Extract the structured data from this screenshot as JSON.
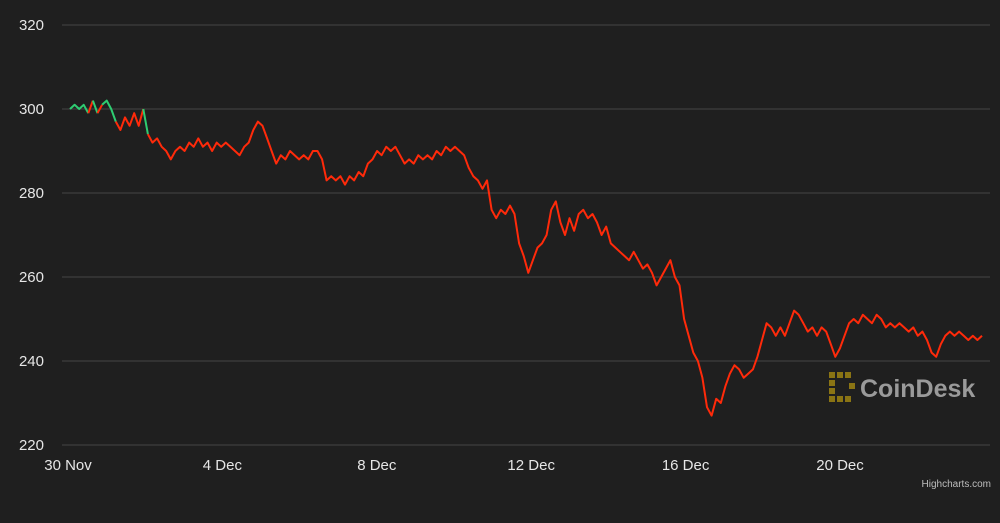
{
  "chart_data": {
    "type": "line",
    "title": "",
    "xlabel": "",
    "ylabel": "",
    "ylim": [
      220,
      320
    ],
    "y_ticks": [
      "220",
      "240",
      "260",
      "280",
      "300",
      "320"
    ],
    "x_ticks": [
      "30 Nov",
      "4 Dec",
      "8 Dec",
      "12 Dec",
      "16 Dec",
      "20 Dec"
    ],
    "grid": true,
    "legend": "none",
    "colors": {
      "background": "#1f1f1f",
      "grid": "#444444",
      "up": "#2ecc71",
      "down": "#ff2a0a"
    },
    "series": [
      {
        "x_start": "2021-11-30",
        "x_end": "2021-12-24",
        "points": [
          [
            "2021-11-30",
            300
          ],
          [
            "2021-11-30",
            301
          ],
          [
            "2021-11-30",
            300
          ],
          [
            "2021-11-30",
            301
          ],
          [
            "2021-11-30",
            299
          ],
          [
            "2021-11-30",
            302
          ],
          [
            "2021-11-30",
            299
          ],
          [
            "2021-12-01",
            301
          ],
          [
            "2021-12-01",
            302
          ],
          [
            "2021-12-01",
            300
          ],
          [
            "2021-12-01",
            297
          ],
          [
            "2021-12-01",
            295
          ],
          [
            "2021-12-01",
            298
          ],
          [
            "2021-12-01",
            296
          ],
          [
            "2021-12-01",
            299
          ],
          [
            "2021-12-01",
            296
          ],
          [
            "2021-12-01",
            300
          ],
          [
            "2021-12-01",
            294
          ],
          [
            "2021-12-01",
            292
          ],
          [
            "2021-12-02",
            293
          ],
          [
            "2021-12-02",
            291
          ],
          [
            "2021-12-02",
            290
          ],
          [
            "2021-12-02",
            288
          ],
          [
            "2021-12-02",
            290
          ],
          [
            "2021-12-02",
            291
          ],
          [
            "2021-12-02",
            290
          ],
          [
            "2021-12-03",
            292
          ],
          [
            "2021-12-03",
            291
          ],
          [
            "2021-12-03",
            293
          ],
          [
            "2021-12-03",
            291
          ],
          [
            "2021-12-03",
            292
          ],
          [
            "2021-12-03",
            290
          ],
          [
            "2021-12-03",
            292
          ],
          [
            "2021-12-04",
            291
          ],
          [
            "2021-12-04",
            292
          ],
          [
            "2021-12-04",
            291
          ],
          [
            "2021-12-04",
            290
          ],
          [
            "2021-12-04",
            289
          ],
          [
            "2021-12-04",
            291
          ],
          [
            "2021-12-05",
            292
          ],
          [
            "2021-12-05",
            295
          ],
          [
            "2021-12-05",
            297
          ],
          [
            "2021-12-05",
            296
          ],
          [
            "2021-12-05",
            293
          ],
          [
            "2021-12-05",
            290
          ],
          [
            "2021-12-05",
            287
          ],
          [
            "2021-12-05",
            289
          ],
          [
            "2021-12-06",
            288
          ],
          [
            "2021-12-06",
            290
          ],
          [
            "2021-12-06",
            289
          ],
          [
            "2021-12-06",
            288
          ],
          [
            "2021-12-06",
            289
          ],
          [
            "2021-12-07",
            288
          ],
          [
            "2021-12-07",
            290
          ],
          [
            "2021-12-07",
            290
          ],
          [
            "2021-12-07",
            288
          ],
          [
            "2021-12-07",
            283
          ],
          [
            "2021-12-07",
            284
          ],
          [
            "2021-12-07",
            283
          ],
          [
            "2021-12-08",
            284
          ],
          [
            "2021-12-08",
            282
          ],
          [
            "2021-12-08",
            284
          ],
          [
            "2021-12-08",
            283
          ],
          [
            "2021-12-08",
            285
          ],
          [
            "2021-12-08",
            284
          ],
          [
            "2021-12-08",
            287
          ],
          [
            "2021-12-09",
            288
          ],
          [
            "2021-12-09",
            290
          ],
          [
            "2021-12-09",
            289
          ],
          [
            "2021-12-09",
            291
          ],
          [
            "2021-12-09",
            290
          ],
          [
            "2021-12-09",
            291
          ],
          [
            "2021-12-09",
            289
          ],
          [
            "2021-12-10",
            287
          ],
          [
            "2021-12-10",
            288
          ],
          [
            "2021-12-10",
            287
          ],
          [
            "2021-12-10",
            289
          ],
          [
            "2021-12-10",
            288
          ],
          [
            "2021-12-10",
            289
          ],
          [
            "2021-12-11",
            288
          ],
          [
            "2021-12-11",
            290
          ],
          [
            "2021-12-11",
            289
          ],
          [
            "2021-12-11",
            291
          ],
          [
            "2021-12-11",
            290
          ],
          [
            "2021-12-11",
            291
          ],
          [
            "2021-12-11",
            290
          ],
          [
            "2021-12-11",
            289
          ],
          [
            "2021-12-12",
            286
          ],
          [
            "2021-12-12",
            284
          ],
          [
            "2021-12-12",
            283
          ],
          [
            "2021-12-12",
            281
          ],
          [
            "2021-12-12",
            283
          ],
          [
            "2021-12-12",
            276
          ],
          [
            "2021-12-12",
            274
          ],
          [
            "2021-12-12",
            276
          ],
          [
            "2021-12-13",
            275
          ],
          [
            "2021-12-13",
            277
          ],
          [
            "2021-12-13",
            275
          ],
          [
            "2021-12-13",
            268
          ],
          [
            "2021-12-13",
            265
          ],
          [
            "2021-12-13",
            261
          ],
          [
            "2021-12-13",
            264
          ],
          [
            "2021-12-13",
            267
          ],
          [
            "2021-12-13",
            268
          ],
          [
            "2021-12-13",
            270
          ],
          [
            "2021-12-13",
            276
          ],
          [
            "2021-12-13",
            278
          ],
          [
            "2021-12-13",
            273
          ],
          [
            "2021-12-13",
            270
          ],
          [
            "2021-12-14",
            274
          ],
          [
            "2021-12-14",
            271
          ],
          [
            "2021-12-14",
            275
          ],
          [
            "2021-12-14",
            276
          ],
          [
            "2021-12-14",
            274
          ],
          [
            "2021-12-14",
            275
          ],
          [
            "2021-12-14",
            273
          ],
          [
            "2021-12-14",
            270
          ],
          [
            "2021-12-14",
            272
          ],
          [
            "2021-12-14",
            268
          ],
          [
            "2021-12-15",
            267
          ],
          [
            "2021-12-15",
            266
          ],
          [
            "2021-12-15",
            265
          ],
          [
            "2021-12-15",
            264
          ],
          [
            "2021-12-15",
            266
          ],
          [
            "2021-12-15",
            264
          ],
          [
            "2021-12-15",
            262
          ],
          [
            "2021-12-15",
            263
          ],
          [
            "2021-12-15",
            261
          ],
          [
            "2021-12-16",
            258
          ],
          [
            "2021-12-16",
            260
          ],
          [
            "2021-12-16",
            262
          ],
          [
            "2021-12-16",
            264
          ],
          [
            "2021-12-16",
            260
          ],
          [
            "2021-12-16",
            258
          ],
          [
            "2021-12-16",
            250
          ],
          [
            "2021-12-16",
            246
          ],
          [
            "2021-12-16",
            242
          ],
          [
            "2021-12-16",
            240
          ],
          [
            "2021-12-17",
            236
          ],
          [
            "2021-12-17",
            229
          ],
          [
            "2021-12-17",
            227
          ],
          [
            "2021-12-17",
            231
          ],
          [
            "2021-12-17",
            230
          ],
          [
            "2021-12-17",
            234
          ],
          [
            "2021-12-17",
            237
          ],
          [
            "2021-12-17",
            239
          ],
          [
            "2021-12-17",
            238
          ],
          [
            "2021-12-17",
            236
          ],
          [
            "2021-12-17",
            237
          ],
          [
            "2021-12-18",
            238
          ],
          [
            "2021-12-18",
            241
          ],
          [
            "2021-12-18",
            245
          ],
          [
            "2021-12-18",
            249
          ],
          [
            "2021-12-18",
            248
          ],
          [
            "2021-12-18",
            246
          ],
          [
            "2021-12-18",
            248
          ],
          [
            "2021-12-18",
            246
          ],
          [
            "2021-12-19",
            249
          ],
          [
            "2021-12-19",
            252
          ],
          [
            "2021-12-19",
            251
          ],
          [
            "2021-12-19",
            249
          ],
          [
            "2021-12-19",
            247
          ],
          [
            "2021-12-19",
            248
          ],
          [
            "2021-12-19",
            246
          ],
          [
            "2021-12-19",
            248
          ],
          [
            "2021-12-19",
            247
          ],
          [
            "2021-12-20",
            244
          ],
          [
            "2021-12-20",
            241
          ],
          [
            "2021-12-20",
            243
          ],
          [
            "2021-12-20",
            246
          ],
          [
            "2021-12-20",
            249
          ],
          [
            "2021-12-20",
            250
          ],
          [
            "2021-12-20",
            249
          ],
          [
            "2021-12-20",
            251
          ],
          [
            "2021-12-20",
            250
          ],
          [
            "2021-12-20",
            249
          ],
          [
            "2021-12-21",
            251
          ],
          [
            "2021-12-21",
            250
          ],
          [
            "2021-12-21",
            248
          ],
          [
            "2021-12-21",
            249
          ],
          [
            "2021-12-21",
            248
          ],
          [
            "2021-12-22",
            249
          ],
          [
            "2021-12-22",
            248
          ],
          [
            "2021-12-22",
            247
          ],
          [
            "2021-12-22",
            248
          ],
          [
            "2021-12-22",
            246
          ],
          [
            "2021-12-22",
            247
          ],
          [
            "2021-12-22",
            245
          ],
          [
            "2021-12-23",
            242
          ],
          [
            "2021-12-23",
            241
          ],
          [
            "2021-12-23",
            244
          ],
          [
            "2021-12-23",
            246
          ],
          [
            "2021-12-23",
            247
          ],
          [
            "2021-12-23",
            246
          ],
          [
            "2021-12-23",
            247
          ],
          [
            "2021-12-23",
            246
          ],
          [
            "2021-12-23",
            245
          ],
          [
            "2021-12-23",
            246
          ],
          [
            "2021-12-24",
            245
          ],
          [
            "2021-12-24",
            246
          ]
        ]
      }
    ]
  },
  "watermark": {
    "text": "CoinDesk",
    "icon": "coindesk-logo-icon"
  },
  "credit": "Highcharts.com"
}
